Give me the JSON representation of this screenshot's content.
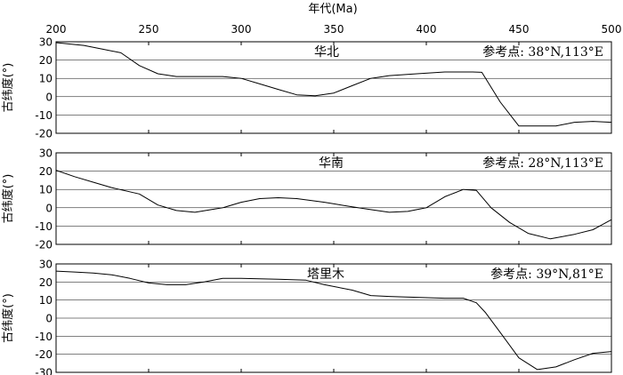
{
  "chart_data": {
    "type": "line",
    "xlabel": "年代(Ma)",
    "xlim": [
      200,
      500
    ],
    "xticks": [
      200,
      250,
      300,
      350,
      400,
      450,
      500
    ],
    "ylabel": "古纬度(°)",
    "grid": "horizontal",
    "panels": [
      {
        "title": "华北",
        "reference": "参考点: 38°N,113°E",
        "ylim": [
          -20,
          30
        ],
        "yticks": [
          30,
          20,
          10,
          0,
          -10,
          -20
        ],
        "series": [
          {
            "x": [
              200,
              215,
              225,
              235,
              245,
              255,
              265,
              275,
              290,
              300,
              310,
              320,
              330,
              340,
              350,
              360,
              370,
              380,
              395,
              410,
              418,
              425,
              430,
              440,
              450,
              460,
              470,
              480,
              490,
              500
            ],
            "y": [
              29.5,
              28,
              26,
              24,
              17,
              12.5,
              11,
              11,
              11,
              10,
              7,
              4,
              1,
              0.5,
              2,
              6,
              10,
              11.5,
              12.5,
              13.5,
              13.5,
              13.5,
              13.3,
              -3,
              -16,
              -16,
              -16,
              -14,
              -13.5,
              -14
            ]
          }
        ]
      },
      {
        "title": "华南",
        "reference": "参考点: 28°N,113°E",
        "ylim": [
          -20,
          30
        ],
        "yticks": [
          30,
          20,
          10,
          0,
          -10,
          -20
        ],
        "series": [
          {
            "x": [
              200,
              210,
              220,
              230,
              245,
              255,
              265,
              275,
              290,
              300,
              310,
              320,
              330,
              345,
              360,
              370,
              380,
              390,
              400,
              410,
              420,
              427,
              435,
              445,
              455,
              467,
              480,
              490,
              500
            ],
            "y": [
              20.5,
              17,
              14,
              11,
              7.5,
              1.5,
              -1.5,
              -2.5,
              0,
              3,
              5,
              5.5,
              5,
              3,
              0.5,
              -1,
              -2.5,
              -2,
              0,
              6,
              10,
              9.5,
              0,
              -8,
              -14,
              -17,
              -14.5,
              -12,
              -6.5
            ]
          }
        ]
      },
      {
        "title": "塔里木",
        "reference": "参考点: 39°N,81°E",
        "ylim": [
          -30,
          30
        ],
        "yticks": [
          30,
          20,
          10,
          0,
          -10,
          -20,
          -30
        ],
        "series": [
          {
            "x": [
              200,
              210,
              220,
              230,
              240,
              250,
              260,
              270,
              280,
              290,
              300,
              320,
              335,
              345,
              360,
              370,
              380,
              395,
              410,
              420,
              427,
              432,
              440,
              450,
              460,
              470,
              480,
              490,
              500
            ],
            "y": [
              26,
              25.5,
              25,
              24,
              22,
              19.5,
              18.5,
              18.5,
              20,
              22,
              22,
              21.5,
              21,
              18.5,
              15.5,
              12.5,
              12,
              11.5,
              11,
              11,
              8.5,
              3,
              -8,
              -22,
              -28.5,
              -27,
              -23,
              -19.5,
              -18.5
            ]
          }
        ]
      }
    ]
  },
  "colors": {
    "line": "#000000",
    "grid": "#000000",
    "frame": "#000000"
  }
}
